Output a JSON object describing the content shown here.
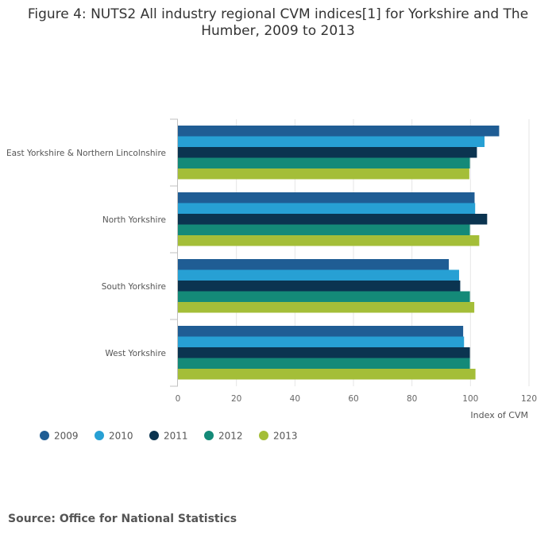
{
  "title_lines": [
    "Figure 4: NUTS2 All industry regional CVM indices[1] for Yorkshire and The",
    "Humber, 2009 to 2013"
  ],
  "source": "Source: Office for National Statistics",
  "chart_data": {
    "type": "bar",
    "orientation": "horizontal",
    "title": "Figure 4: NUTS2 All industry regional CVM indices[1] for Yorkshire and The Humber, 2009 to 2013",
    "xlabel": "Index of CVM",
    "ylabel": "",
    "xlim": [
      0,
      120
    ],
    "xticks": [
      0,
      20,
      40,
      60,
      80,
      100,
      120
    ],
    "grid": true,
    "legend_position": "bottom-left",
    "categories": [
      "East Yorkshire & Northern Lincolnshire",
      "North Yorkshire",
      "South Yorkshire",
      "West Yorkshire"
    ],
    "series": [
      {
        "name": "2009",
        "color": "#1f5d94",
        "values": [
          109.8,
          101.4,
          92.6,
          97.5
        ]
      },
      {
        "name": "2010",
        "color": "#27a0d4",
        "values": [
          104.8,
          101.6,
          96.1,
          97.8
        ]
      },
      {
        "name": "2011",
        "color": "#0b3450",
        "values": [
          102.2,
          105.7,
          96.5,
          99.8
        ]
      },
      {
        "name": "2012",
        "color": "#148a78",
        "values": [
          99.8,
          99.8,
          99.8,
          99.8
        ]
      },
      {
        "name": "2013",
        "color": "#a4be38",
        "values": [
          99.6,
          103.0,
          101.3,
          101.7
        ]
      }
    ]
  }
}
